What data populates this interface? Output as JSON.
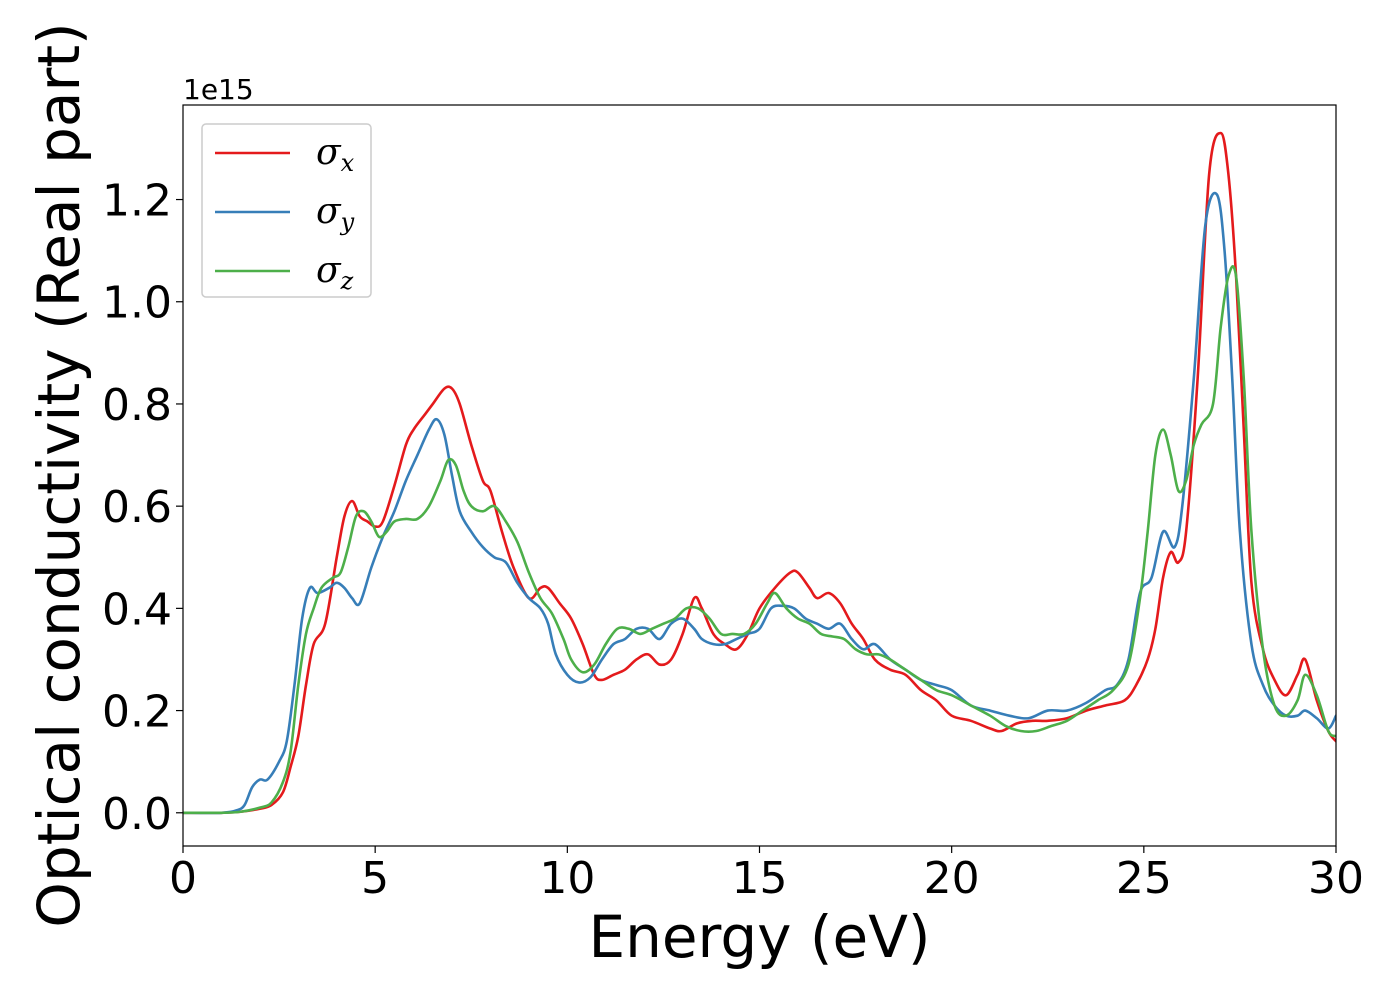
{
  "chart_data": {
    "type": "line",
    "xlabel": "Energy (eV)",
    "ylabel": "Optical conductivity (Real part)",
    "y_offset_label": "1e15",
    "xlim": [
      0,
      30
    ],
    "ylim": [
      -0.065,
      1.385
    ],
    "y_scale": 1000000000000000.0,
    "grid": false,
    "legend_position": "top-left",
    "x_ticks": [
      0,
      5,
      10,
      15,
      20,
      25,
      30
    ],
    "x_tick_labels": [
      "0",
      "5",
      "10",
      "15",
      "20",
      "25",
      "30"
    ],
    "y_ticks": [
      0.0,
      0.2,
      0.4,
      0.6,
      0.8,
      1.0,
      1.2
    ],
    "y_tick_labels": [
      "0.0",
      "0.2",
      "0.4",
      "0.6",
      "0.8",
      "1.0",
      "1.2"
    ],
    "series": [
      {
        "name": "σ",
        "subscript": "x",
        "color": "#e41a1c",
        "x": [
          0,
          1.0,
          1.5,
          2.0,
          2.3,
          2.6,
          2.8,
          3.0,
          3.2,
          3.4,
          3.7,
          4.0,
          4.2,
          4.4,
          4.6,
          4.8,
          5.0,
          5.2,
          5.5,
          5.8,
          6.0,
          6.3,
          6.5,
          6.8,
          7.0,
          7.2,
          7.5,
          7.8,
          8.0,
          8.3,
          8.6,
          9.0,
          9.3,
          9.5,
          9.8,
          10.1,
          10.4,
          10.7,
          10.9,
          11.2,
          11.5,
          11.8,
          12.1,
          12.4,
          12.7,
          13.0,
          13.3,
          13.5,
          13.8,
          14.1,
          14.4,
          14.7,
          15.0,
          15.4,
          15.8,
          16.0,
          16.3,
          16.5,
          16.8,
          17.1,
          17.4,
          17.7,
          18.0,
          18.4,
          18.8,
          19.2,
          19.6,
          20.0,
          20.5,
          21.0,
          21.3,
          21.7,
          22.1,
          22.5,
          23.0,
          23.5,
          24.0,
          24.5,
          24.8,
          25.1,
          25.3,
          25.5,
          25.7,
          25.9,
          26.1,
          26.4,
          26.7,
          27.0,
          27.2,
          27.4,
          27.6,
          27.8,
          28.1,
          28.4,
          28.7,
          29.0,
          29.2,
          29.5,
          29.8,
          30.0
        ],
        "values": [
          0.0,
          0.0,
          0.002,
          0.008,
          0.015,
          0.04,
          0.09,
          0.15,
          0.25,
          0.33,
          0.37,
          0.5,
          0.58,
          0.61,
          0.58,
          0.57,
          0.56,
          0.57,
          0.64,
          0.72,
          0.75,
          0.78,
          0.8,
          0.83,
          0.83,
          0.8,
          0.72,
          0.65,
          0.63,
          0.55,
          0.48,
          0.42,
          0.44,
          0.44,
          0.41,
          0.38,
          0.33,
          0.27,
          0.26,
          0.27,
          0.28,
          0.3,
          0.31,
          0.29,
          0.3,
          0.35,
          0.42,
          0.4,
          0.35,
          0.33,
          0.32,
          0.35,
          0.4,
          0.44,
          0.47,
          0.47,
          0.44,
          0.42,
          0.43,
          0.41,
          0.37,
          0.34,
          0.3,
          0.28,
          0.27,
          0.24,
          0.22,
          0.19,
          0.18,
          0.165,
          0.16,
          0.175,
          0.18,
          0.18,
          0.185,
          0.2,
          0.21,
          0.22,
          0.25,
          0.3,
          0.36,
          0.46,
          0.51,
          0.49,
          0.55,
          0.85,
          1.25,
          1.33,
          1.25,
          1.05,
          0.75,
          0.45,
          0.32,
          0.26,
          0.23,
          0.27,
          0.3,
          0.22,
          0.16,
          0.14
        ]
      },
      {
        "name": "σ",
        "subscript": "y",
        "color": "#377eb8",
        "x": [
          0,
          1.0,
          1.4,
          1.6,
          1.8,
          2.0,
          2.2,
          2.5,
          2.7,
          2.9,
          3.1,
          3.3,
          3.5,
          3.8,
          4.0,
          4.2,
          4.4,
          4.6,
          4.9,
          5.2,
          5.5,
          5.8,
          6.1,
          6.4,
          6.6,
          6.8,
          7.0,
          7.2,
          7.5,
          7.8,
          8.1,
          8.4,
          8.7,
          9.0,
          9.3,
          9.5,
          9.7,
          10.0,
          10.3,
          10.6,
          10.9,
          11.2,
          11.5,
          11.8,
          12.1,
          12.4,
          12.7,
          13.0,
          13.3,
          13.5,
          13.8,
          14.1,
          14.4,
          14.7,
          15.0,
          15.3,
          15.6,
          15.9,
          16.2,
          16.5,
          16.8,
          17.1,
          17.4,
          17.7,
          18.0,
          18.4,
          18.8,
          19.2,
          19.6,
          20.0,
          20.5,
          21.0,
          21.5,
          22.0,
          22.5,
          23.0,
          23.5,
          24.0,
          24.3,
          24.6,
          24.9,
          25.2,
          25.5,
          25.8,
          26.0,
          26.3,
          26.6,
          26.9,
          27.1,
          27.3,
          27.5,
          27.8,
          28.1,
          28.4,
          28.7,
          29.0,
          29.2,
          29.5,
          29.8,
          30.0
        ],
        "values": [
          0.0,
          0.0,
          0.005,
          0.015,
          0.05,
          0.065,
          0.065,
          0.1,
          0.14,
          0.25,
          0.38,
          0.44,
          0.43,
          0.44,
          0.45,
          0.44,
          0.42,
          0.41,
          0.48,
          0.54,
          0.59,
          0.65,
          0.7,
          0.75,
          0.77,
          0.74,
          0.66,
          0.59,
          0.55,
          0.52,
          0.5,
          0.49,
          0.45,
          0.42,
          0.4,
          0.37,
          0.31,
          0.27,
          0.255,
          0.265,
          0.3,
          0.33,
          0.34,
          0.36,
          0.36,
          0.34,
          0.37,
          0.38,
          0.36,
          0.34,
          0.33,
          0.33,
          0.34,
          0.35,
          0.36,
          0.4,
          0.405,
          0.4,
          0.38,
          0.37,
          0.36,
          0.37,
          0.34,
          0.32,
          0.33,
          0.3,
          0.28,
          0.26,
          0.25,
          0.24,
          0.21,
          0.2,
          0.19,
          0.185,
          0.2,
          0.2,
          0.215,
          0.24,
          0.25,
          0.3,
          0.43,
          0.46,
          0.55,
          0.52,
          0.6,
          0.85,
          1.15,
          1.21,
          1.1,
          0.85,
          0.55,
          0.33,
          0.25,
          0.21,
          0.19,
          0.19,
          0.2,
          0.185,
          0.165,
          0.19
        ]
      },
      {
        "name": "σ",
        "subscript": "z",
        "color": "#4daf4a",
        "x": [
          0,
          1.0,
          1.5,
          2.0,
          2.3,
          2.6,
          2.8,
          3.0,
          3.2,
          3.4,
          3.6,
          3.9,
          4.1,
          4.3,
          4.5,
          4.7,
          4.9,
          5.1,
          5.3,
          5.5,
          5.8,
          6.1,
          6.4,
          6.7,
          6.9,
          7.1,
          7.3,
          7.5,
          7.8,
          8.1,
          8.4,
          8.7,
          9.0,
          9.3,
          9.6,
          9.9,
          10.1,
          10.4,
          10.7,
          11.0,
          11.3,
          11.6,
          11.9,
          12.2,
          12.5,
          12.8,
          13.1,
          13.4,
          13.7,
          14.0,
          14.3,
          14.6,
          14.9,
          15.2,
          15.4,
          15.7,
          16.0,
          16.3,
          16.6,
          16.9,
          17.2,
          17.5,
          17.8,
          18.1,
          18.4,
          18.8,
          19.2,
          19.6,
          20.0,
          20.5,
          21.0,
          21.4,
          21.8,
          22.2,
          22.6,
          23.0,
          23.4,
          23.8,
          24.2,
          24.6,
          24.9,
          25.1,
          25.3,
          25.5,
          25.7,
          25.9,
          26.1,
          26.3,
          26.5,
          26.8,
          27.0,
          27.2,
          27.4,
          27.6,
          27.8,
          28.1,
          28.4,
          28.7,
          29.0,
          29.2,
          29.5,
          29.8,
          30.0
        ],
        "values": [
          0.0,
          0.0,
          0.002,
          0.01,
          0.02,
          0.06,
          0.12,
          0.25,
          0.35,
          0.4,
          0.44,
          0.46,
          0.47,
          0.52,
          0.58,
          0.59,
          0.57,
          0.54,
          0.55,
          0.57,
          0.575,
          0.575,
          0.6,
          0.65,
          0.69,
          0.68,
          0.63,
          0.6,
          0.59,
          0.6,
          0.57,
          0.53,
          0.47,
          0.42,
          0.39,
          0.34,
          0.3,
          0.275,
          0.29,
          0.33,
          0.36,
          0.36,
          0.35,
          0.36,
          0.37,
          0.38,
          0.4,
          0.4,
          0.38,
          0.35,
          0.35,
          0.35,
          0.37,
          0.41,
          0.43,
          0.4,
          0.38,
          0.37,
          0.35,
          0.345,
          0.34,
          0.32,
          0.31,
          0.31,
          0.3,
          0.28,
          0.26,
          0.24,
          0.23,
          0.21,
          0.19,
          0.17,
          0.16,
          0.16,
          0.17,
          0.18,
          0.2,
          0.22,
          0.24,
          0.29,
          0.42,
          0.55,
          0.7,
          0.75,
          0.7,
          0.63,
          0.65,
          0.72,
          0.76,
          0.8,
          0.95,
          1.05,
          1.05,
          0.85,
          0.55,
          0.32,
          0.21,
          0.19,
          0.22,
          0.27,
          0.23,
          0.16,
          0.15
        ]
      }
    ]
  }
}
